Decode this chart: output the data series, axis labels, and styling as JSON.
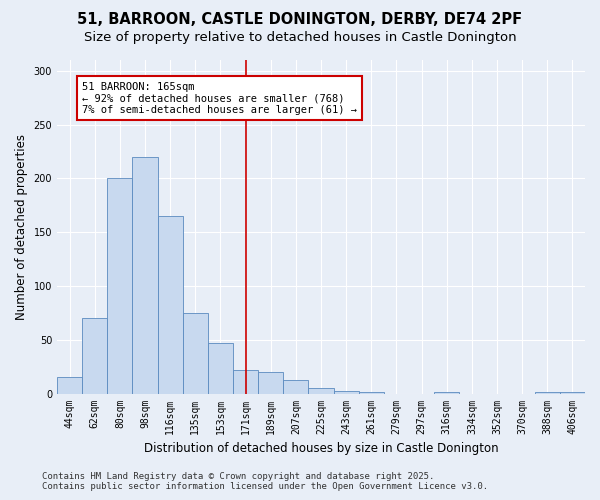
{
  "title": "51, BARROON, CASTLE DONINGTON, DERBY, DE74 2PF",
  "subtitle": "Size of property relative to detached houses in Castle Donington",
  "xlabel": "Distribution of detached houses by size in Castle Donington",
  "ylabel": "Number of detached properties",
  "footer_line1": "Contains HM Land Registry data © Crown copyright and database right 2025.",
  "footer_line2": "Contains public sector information licensed under the Open Government Licence v3.0.",
  "bar_labels": [
    "44sqm",
    "62sqm",
    "80sqm",
    "98sqm",
    "116sqm",
    "135sqm",
    "153sqm",
    "171sqm",
    "189sqm",
    "207sqm",
    "225sqm",
    "243sqm",
    "261sqm",
    "279sqm",
    "297sqm",
    "316sqm",
    "334sqm",
    "352sqm",
    "370sqm",
    "388sqm",
    "406sqm"
  ],
  "bar_values": [
    15,
    70,
    200,
    220,
    165,
    75,
    47,
    22,
    20,
    13,
    5,
    2,
    1,
    0,
    0,
    1,
    0,
    0,
    0,
    1,
    1
  ],
  "bar_color": "#c8d9ef",
  "bar_edge_color": "#5a8abf",
  "vline_x": 7,
  "vline_color": "#cc0000",
  "annotation_text": "51 BARROON: 165sqm\n← 92% of detached houses are smaller (768)\n7% of semi-detached houses are larger (61) →",
  "annotation_box_color": "#ffffff",
  "annotation_box_edge_color": "#cc0000",
  "ylim": [
    0,
    310
  ],
  "yticks": [
    0,
    50,
    100,
    150,
    200,
    250,
    300
  ],
  "background_color": "#e8eef7",
  "grid_color": "#ffffff",
  "title_fontsize": 10.5,
  "subtitle_fontsize": 9.5,
  "axis_label_fontsize": 8.5,
  "tick_fontsize": 7,
  "footer_fontsize": 6.5
}
